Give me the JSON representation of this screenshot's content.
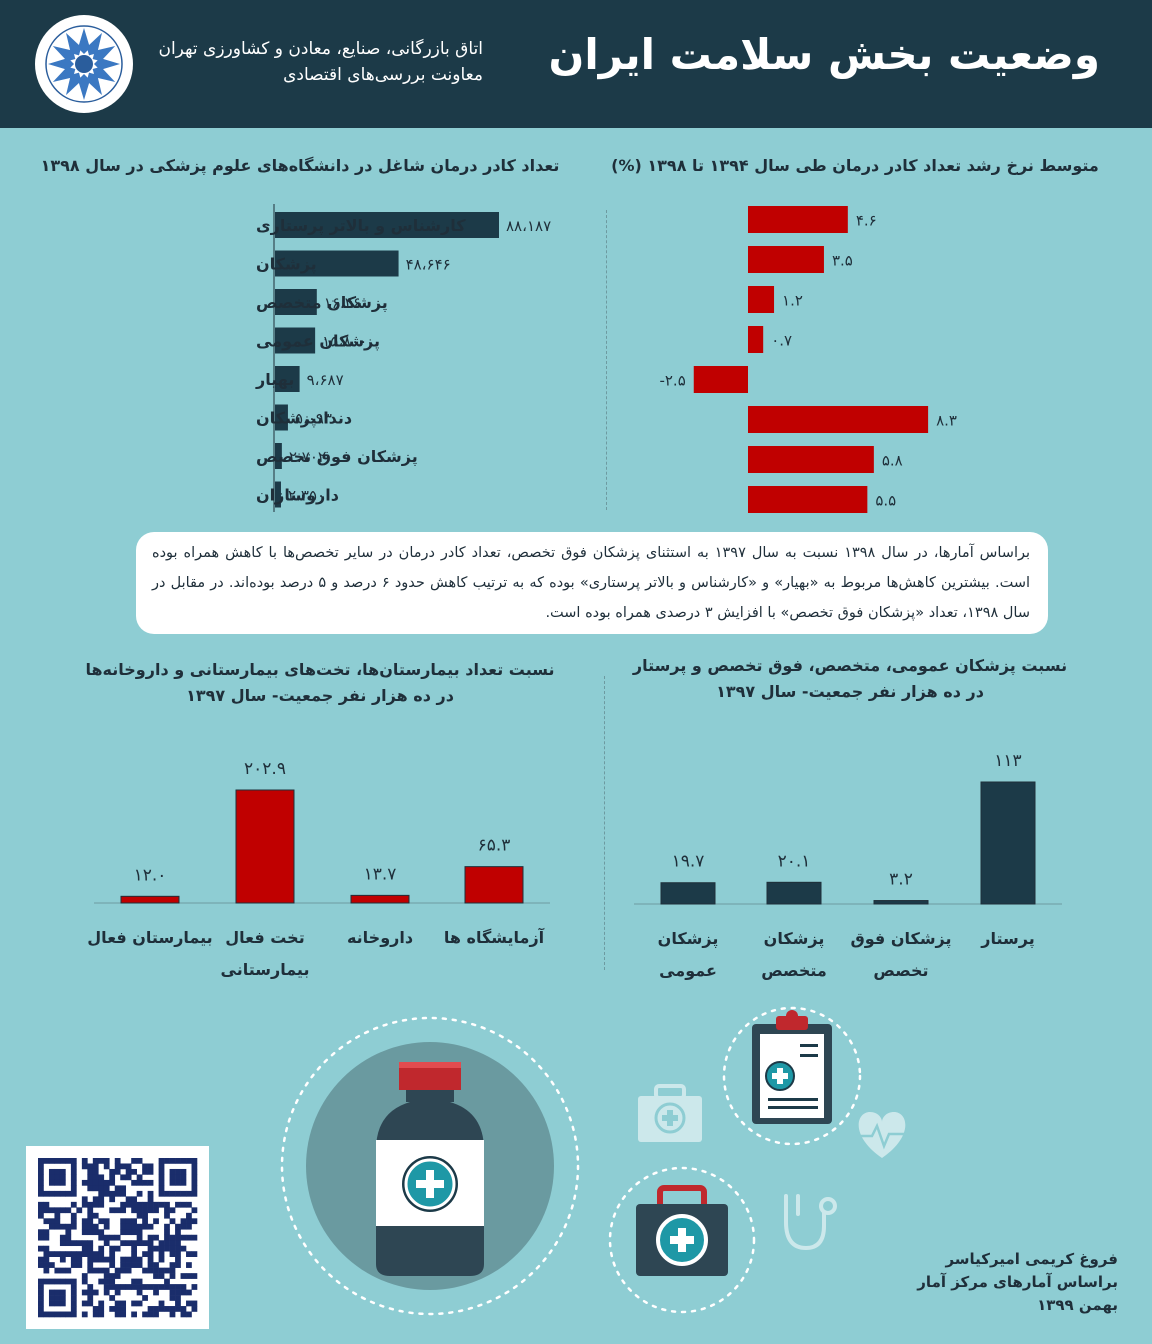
{
  "header": {
    "title": "وضعیت بخش سلامت ایران",
    "org_line1": "اتاق بازرگانی، صنایع، معادن و کشاورزی تهران",
    "org_line2": "معاونت بررسی‌های اقتصادی"
  },
  "colors": {
    "dark": "#1c3a48",
    "red": "#c00000",
    "background": "#8ecdd3"
  },
  "icons": [
    "chamber-logo",
    "qr-code",
    "medicine-bottle-icon",
    "clipboard-icon",
    "first-aid-kit-icon",
    "heart-pulse-icon",
    "stethoscope-icon"
  ],
  "chart_data": [
    {
      "type": "bar",
      "orientation": "horizontal",
      "title": "تعداد کادر درمان شاغل در دانشگاه‌های علوم پزشکی در سال ۱۳۹۸",
      "categories": [
        "کارشناس و بالاتر پرستاری",
        "پزشکان",
        "پزشکان متخصص",
        "پزشکان عمومی",
        "بهیار",
        "دندانپزشکان",
        "پزشکان فوق تخصص",
        "داروسازان"
      ],
      "values": [
        88187,
        48646,
        16460,
        15800,
        9687,
        5093,
        2702,
        2350
      ],
      "data_labels": [
        "۸۸،۱۸۷",
        "۴۸،۶۴۶",
        "۱۶،۴۶۰",
        "۱۵،۸۰۰",
        "۹،۶۸۷",
        "۵،۰۹۳",
        "۲،۷۰۲",
        "۲،۳۵۰"
      ],
      "xlim": [
        0,
        88187
      ]
    },
    {
      "type": "bar",
      "orientation": "horizontal",
      "title": "متوسط نرخ رشد تعداد کادر درمان طی سال ۱۳۹۴  تا ۱۳۹۸ (%)",
      "categories": [
        "کارشناس و بالاتر پرستاری",
        "پزشکان",
        "پزشکان متخصص",
        "پزشکان عمومی",
        "بهیار",
        "دندانپزشکان",
        "پزشکان فوق تخصص",
        "داروسازان"
      ],
      "values": [
        4.6,
        3.5,
        1.2,
        0.7,
        -2.5,
        8.3,
        5.8,
        5.5
      ],
      "data_labels": [
        "۴.۶",
        "۳.۵",
        "۱.۲",
        "۰.۷",
        "-۲.۵",
        "۸.۳",
        "۵.۸",
        "۵.۵"
      ]
    },
    {
      "type": "bar",
      "title_line1": "نسبت تعداد بیمارستان‌ها، تخت‌های بیمارستانی و داروخانه‌ها",
      "title_line2": "در ده هزار نفر جمعیت- سال ۱۳۹۷",
      "categories": [
        "بیمارستان فعال",
        "تخت فعال بیمارستانی",
        "داروخانه",
        "آزمایشگاه ها"
      ],
      "values": [
        12.0,
        202.9,
        13.7,
        65.3
      ],
      "data_labels": [
        "۱۲.۰",
        "۲۰۲.۹",
        "۱۳.۷",
        "۶۵.۳"
      ]
    },
    {
      "type": "bar",
      "title_line1": "نسبت پزشکان عمومی، متخصص، فوق تخصص و پرستار",
      "title_line2": "در ده هزار نفر جمعیت- سال ۱۳۹۷",
      "categories": [
        "پزشکان عمومی",
        "پزشکان متخصص",
        "پزشکان فوق تخصص",
        "پرستار"
      ],
      "values": [
        19.7,
        20.1,
        3.2,
        113
      ],
      "data_labels": [
        "۱۹.۷",
        "۲۰.۱",
        "۳.۲",
        "۱۱۳"
      ]
    }
  ],
  "category_lines": {
    "c3": [
      [
        "بیمارستان فعال"
      ],
      [
        "تخت فعال",
        "بیمارستانی"
      ],
      [
        "داروخانه"
      ],
      [
        "آزمایشگاه ها"
      ]
    ],
    "c4": [
      [
        "پزشکان",
        "عمومی"
      ],
      [
        "پزشکان",
        "متخصص"
      ],
      [
        "پزشکان فوق",
        "تخصص"
      ],
      [
        "پرستار"
      ]
    ]
  },
  "note": "براساس آمارها، در سال ۱۳۹۸ نسبت به سال ۱۳۹۷ به استثنای پزشکان فوق تخصص، تعداد کادر درمان در سایر تخصص‌ها با کاهش همراه بوده است. بیشترین کاهش‌ها مربوط به «بهیار» و «کارشناس و بالاتر پرستاری» بوده که به ترتیب کاهش حدود ۶ درصد و ۵ درصد بوده‌اند.  در مقابل در سال ۱۳۹۸، تعداد «پزشکان فوق تخصص» با افزایش ۳ درصدی همراه بوده است.",
  "credit": {
    "author": "فروغ کریمی امیرکیاسر",
    "source": "براساس آمارهای مرکز آمار",
    "date": "بهمن ۱۳۹۹"
  }
}
